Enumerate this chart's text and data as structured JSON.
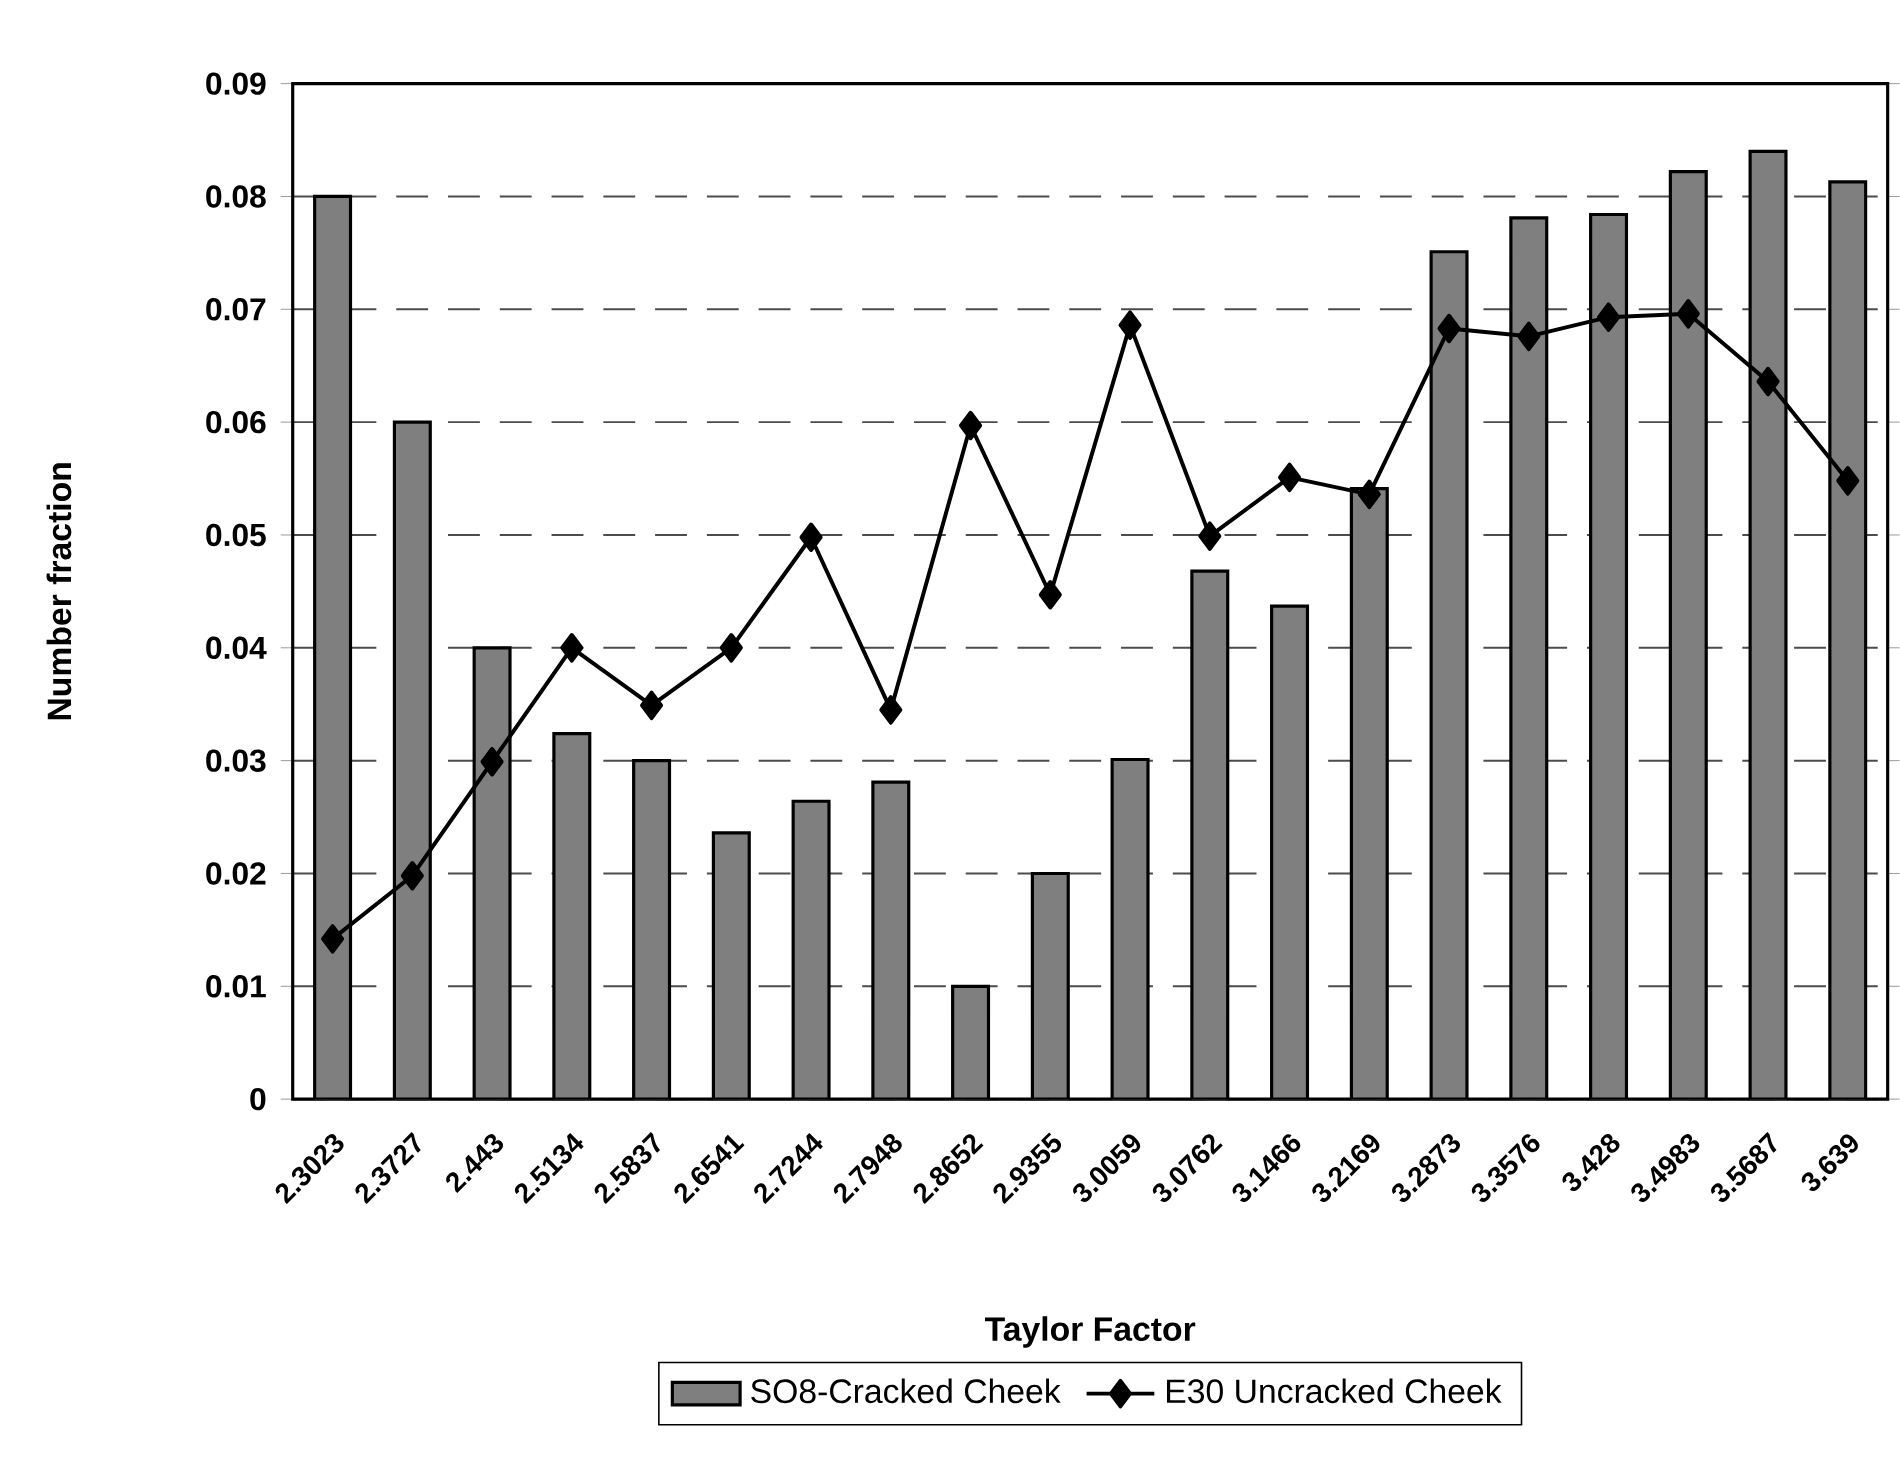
{
  "chart_data": {
    "type": "bar",
    "xlabel": "Taylor Factor",
    "ylabel": "Number fraction",
    "categories": [
      "2.3023",
      "2.3727",
      "2.443",
      "2.5134",
      "2.5837",
      "2.6541",
      "2.7244",
      "2.7948",
      "2.8652",
      "2.9355",
      "3.0059",
      "3.0762",
      "3.1466",
      "3.2169",
      "3.2873",
      "3.3576",
      "3.428",
      "3.4983",
      "3.5687",
      "3.639"
    ],
    "series": [
      {
        "name": "SO8-Cracked Cheek",
        "color": "#7f7f7f",
        "values": [
          0.08,
          0.06,
          0.04,
          0.0324,
          0.03,
          0.0236,
          0.0264,
          0.0281,
          0.01,
          0.02,
          0.0301,
          0.0468,
          0.0437,
          0.0541,
          0.0751,
          0.0781,
          0.0784,
          0.0822,
          0.084,
          0.0813
        ]
      },
      {
        "name": "E30 Uncracked Cheek",
        "type": "line",
        "color": "#000000",
        "marker": "diamond",
        "values": [
          0.0142,
          0.0198,
          0.0299,
          0.04,
          0.0349,
          0.04,
          0.0498,
          0.0345,
          0.0597,
          0.0447,
          0.0686,
          0.0499,
          0.0551,
          0.0536,
          0.0683,
          0.0676,
          0.0693,
          0.0696,
          0.0636,
          0.0548
        ]
      }
    ],
    "ylim": [
      0,
      0.09
    ],
    "yticks": [
      0,
      0.01,
      0.02,
      0.03,
      0.04,
      0.05,
      0.06,
      0.07,
      0.08,
      0.09
    ],
    "grid": "y",
    "legend": "bottom"
  }
}
